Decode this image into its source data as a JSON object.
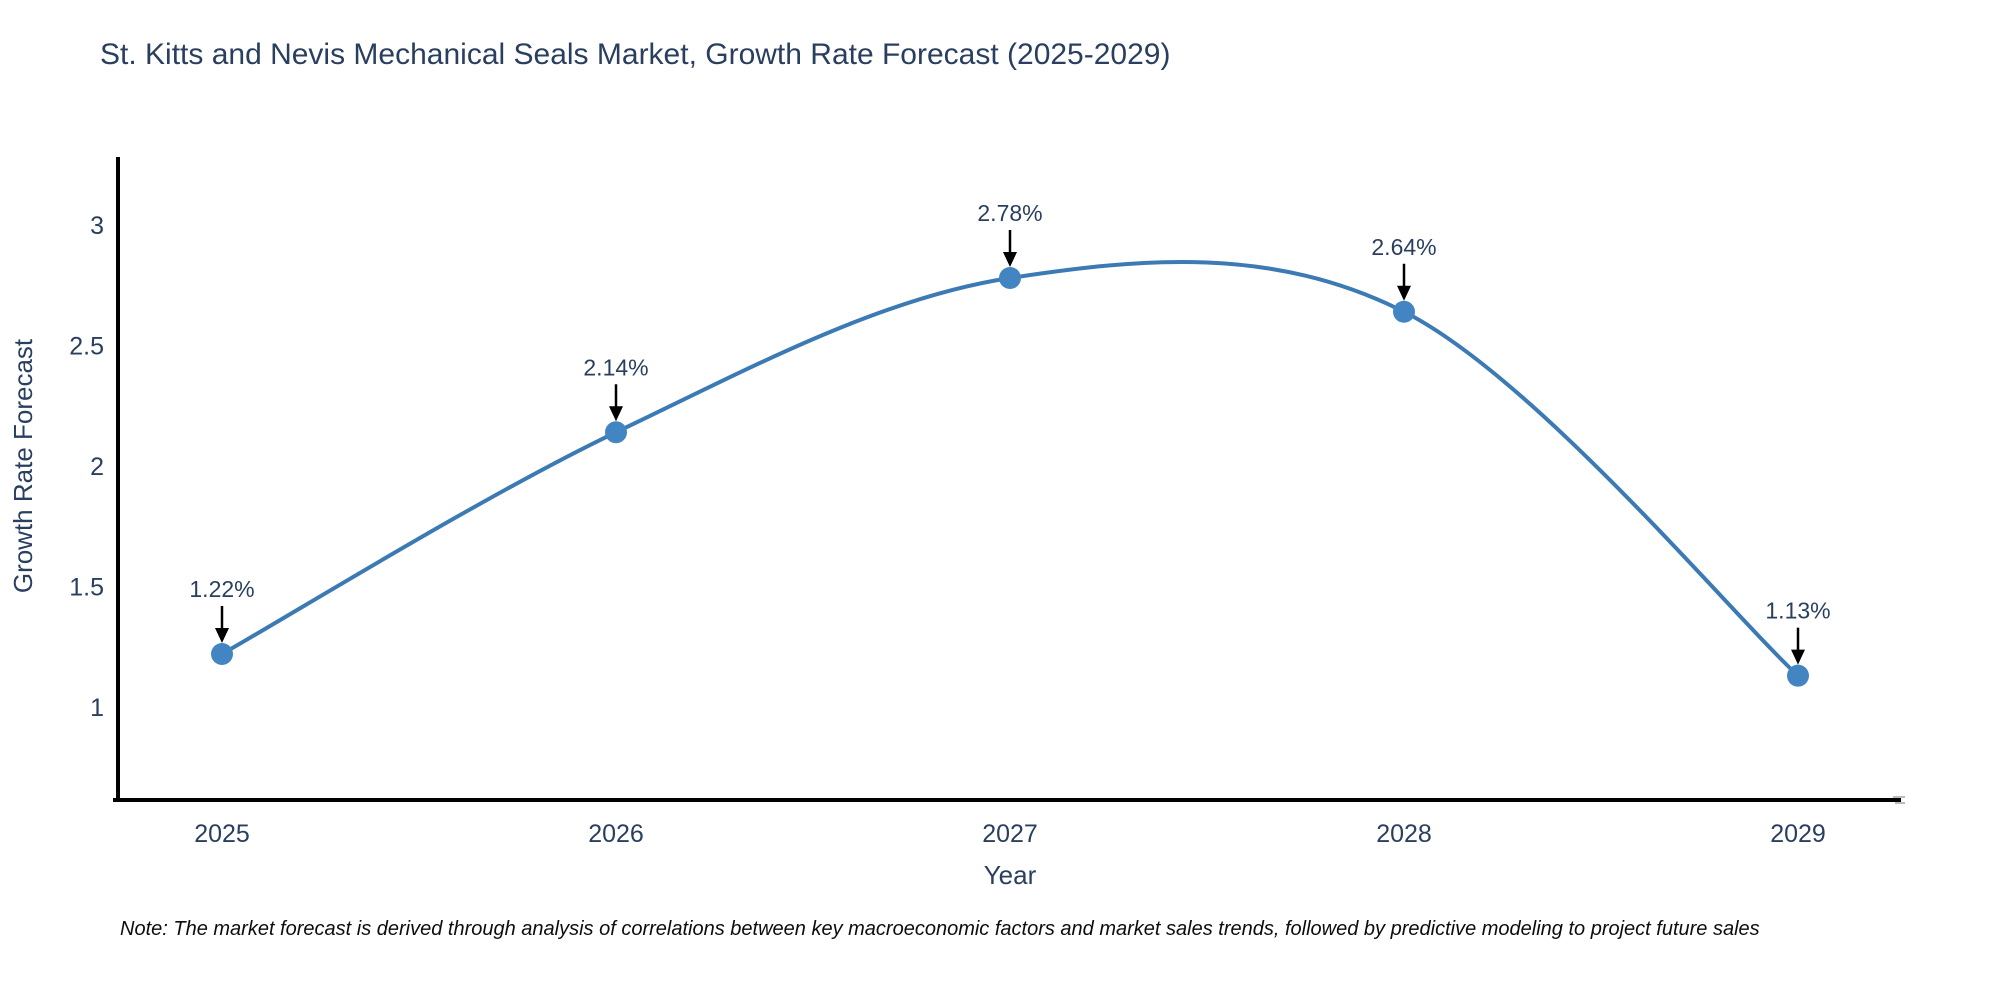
{
  "note": "Note: The market forecast is derived through analysis of correlations between key macroeconomic factors and market sales trends, followed by predictive modeling to project future sales",
  "chart_data": {
    "type": "line",
    "title": "St. Kitts and Nevis Mechanical Seals Market, Growth Rate Forecast (2025-2029)",
    "xlabel": "Year",
    "ylabel": "Growth Rate Forecast",
    "x": [
      2025,
      2026,
      2027,
      2028,
      2029
    ],
    "y": [
      1.22,
      2.14,
      2.78,
      2.64,
      1.13
    ],
    "point_labels": [
      "1.22%",
      "2.14%",
      "2.78%",
      "2.64%",
      "1.13%"
    ],
    "x_tick_labels": [
      "2025",
      "2026",
      "2027",
      "2028",
      "2029"
    ],
    "y_tick_values": [
      1,
      1.5,
      2,
      2.5,
      3
    ],
    "y_tick_labels": [
      "1",
      "1.5",
      "2",
      "2.5",
      "3"
    ],
    "xlim": [
      2024.74,
      2029.26
    ],
    "ylim": [
      0.61,
      3.28
    ],
    "line_shape": "spline",
    "grid": false,
    "legend_position": "none",
    "line_color": "#3c7ab4",
    "marker_color": "#4285c2",
    "axis_line_color": "#000000",
    "annotation_arrow_color": "#000000",
    "text_color": "#2a3f5f",
    "background_color": "#ffffff"
  }
}
